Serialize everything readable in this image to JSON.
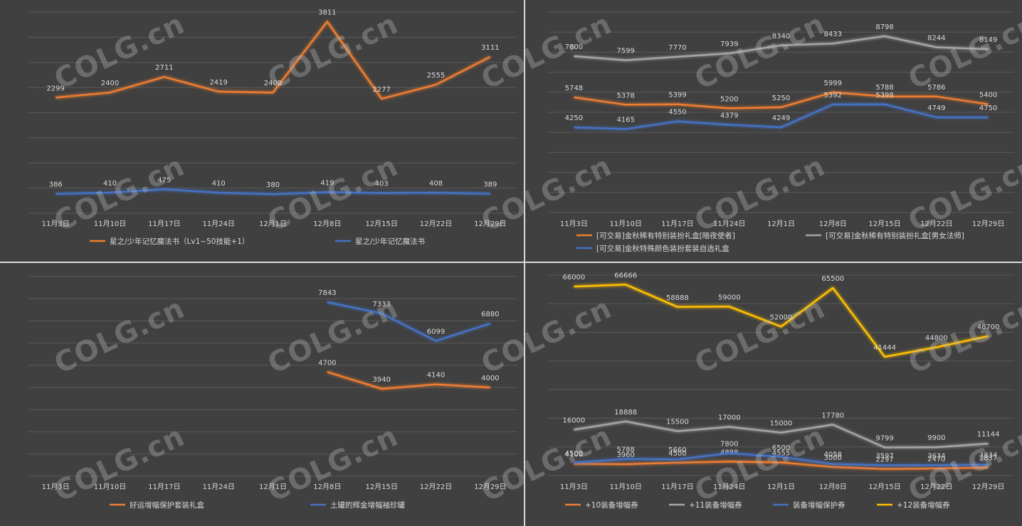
{
  "categories": [
    "11月3日",
    "11月10日",
    "11月17日",
    "11月24日",
    "12月1日",
    "12月8日",
    "12月15日",
    "12月22日",
    "12月29日"
  ],
  "watermark": "COLG.cn",
  "colors": {
    "orange": "#ed7d31",
    "gray": "#a5a5a5",
    "blue": "#4472c4",
    "yellow": "#ffc000",
    "grid": "#595959"
  },
  "chart_data": [
    {
      "type": "line",
      "categories": [
        "11月3日",
        "11月10日",
        "11月17日",
        "11月24日",
        "12月1日",
        "12月8日",
        "12月15日",
        "12月22日",
        "12月29日"
      ],
      "ylim": [
        0,
        4000
      ],
      "grid_step": 500,
      "legend": "bottom",
      "series": [
        {
          "name": "星之/少年记忆魔法书（Lv1~50技能+1）",
          "color": "#ed7d31",
          "values": [
            2299,
            2400,
            2711,
            2419,
            2400,
            3811,
            2277,
            2555,
            3111
          ]
        },
        {
          "name": "星之/少年记忆魔法书",
          "color": "#4472c4",
          "values": [
            386,
            410,
            475,
            410,
            380,
            419,
            403,
            408,
            389
          ]
        }
      ]
    },
    {
      "type": "line",
      "categories": [
        "11月3日",
        "11月10日",
        "11月17日",
        "11月24日",
        "12月1日",
        "12月8日",
        "12月15日",
        "12月22日",
        "12月29日"
      ],
      "ylim": [
        0,
        10000
      ],
      "grid_step": 1000,
      "legend": "bottom",
      "series": [
        {
          "name": "[可交易]金秋稀有特别装扮礼盒[暗夜使者]",
          "color": "#ed7d31",
          "values": [
            5748,
            5378,
            5399,
            5200,
            5250,
            5999,
            5788,
            5786,
            5400
          ]
        },
        {
          "name": "[可交易]金秋稀有特别装扮礼盒[男女法师]",
          "color": "#a5a5a5",
          "values": [
            7800,
            7599,
            7770,
            7939,
            8340,
            8433,
            8798,
            8244,
            8149
          ]
        },
        {
          "name": "[可交易]金秋特殊颜色装扮套装自选礼盒",
          "color": "#4472c4",
          "values": [
            4250,
            4165,
            4550,
            4379,
            4249,
            5392,
            5398,
            4749,
            4750
          ]
        }
      ]
    },
    {
      "type": "line",
      "categories": [
        "11月3日",
        "11月10日",
        "11月17日",
        "11月24日",
        "12月1日",
        "12月8日",
        "12月15日",
        "12月22日",
        "12月29日"
      ],
      "ylim": [
        0,
        9000
      ],
      "grid_step": 1000,
      "legend": "bottom",
      "series": [
        {
          "name": "好运增幅保护套装礼盒",
          "color": "#ed7d31",
          "values": [
            null,
            null,
            null,
            null,
            null,
            4700,
            3940,
            4140,
            4000
          ]
        },
        {
          "name": "土罐的辉金增幅袖珍罐",
          "color": "#4472c4",
          "values": [
            null,
            null,
            null,
            null,
            null,
            7843,
            7333,
            6099,
            6880
          ]
        }
      ]
    },
    {
      "type": "line",
      "categories": [
        "11月3日",
        "11月10日",
        "11月17日",
        "11月24日",
        "12月1日",
        "12月8日",
        "12月15日",
        "12月22日",
        "12月29日"
      ],
      "ylim": [
        0,
        70000
      ],
      "grid_step": 10000,
      "legend": "bottom",
      "series": [
        {
          "name": "+10装备增幅券",
          "color": "#ed7d31",
          "values": [
            4100,
            3960,
            4500,
            4888,
            4555,
            3000,
            2297,
            2470,
            2837
          ]
        },
        {
          "name": "+11装备增幅券",
          "color": "#a5a5a5",
          "values": [
            16000,
            18888,
            15500,
            17000,
            15000,
            17780,
            9799,
            9900,
            11144
          ]
        },
        {
          "name": "装备增幅保护券",
          "color": "#4472c4",
          "values": [
            4500,
            5788,
            5660,
            7800,
            6500,
            4058,
            3597,
            3634,
            3834
          ]
        },
        {
          "name": "+12装备增幅券",
          "color": "#ffc000",
          "values": [
            66000,
            66666,
            58888,
            59000,
            52000,
            65500,
            41444,
            44800,
            48700
          ]
        }
      ]
    }
  ]
}
